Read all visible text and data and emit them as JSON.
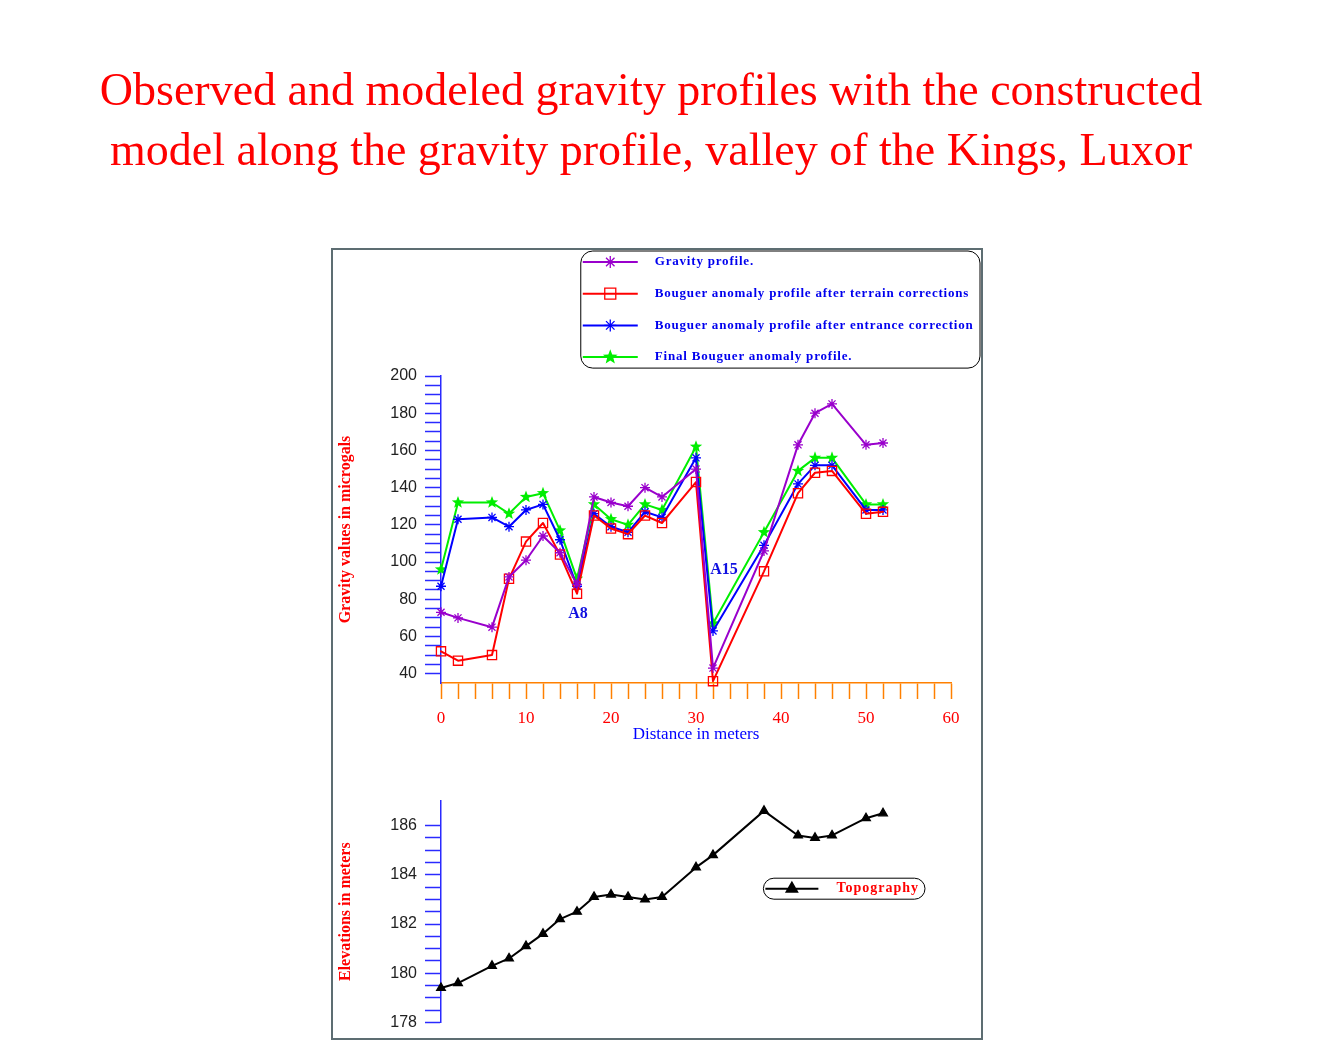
{
  "chart_data": [
    {
      "type": "line",
      "title": "Observed and modeled gravity profiles with the constructed model along the gravity profile, valley of the Kings, Luxor",
      "xlabel": "Distance in meters",
      "ylabel": "Gravity values in microgals",
      "x": [
        0,
        2,
        6,
        8,
        10,
        12,
        14,
        16,
        18,
        20,
        22,
        24,
        26,
        30,
        32,
        38,
        42,
        44,
        46,
        50,
        52
      ],
      "series": [
        {
          "name": "Gravity profile.",
          "color": "#9900cc",
          "marker": "cross",
          "values": [
            73,
            70,
            65,
            92,
            101,
            114,
            105,
            88,
            135,
            132,
            130,
            140,
            135,
            150,
            43,
            106,
            163,
            180,
            185,
            163,
            164
          ]
        },
        {
          "name": "Bouguer anomaly profile after terrain corrections",
          "color": "#ff0000",
          "marker": "square",
          "values": [
            52,
            47,
            50,
            91,
            111,
            121,
            104,
            83,
            125,
            118,
            115,
            125,
            121,
            143,
            36,
            95,
            137,
            148,
            149,
            126,
            127
          ]
        },
        {
          "name": "Bouguer anomaly profile after entrance correction",
          "color": "#0000ff",
          "marker": "cross",
          "values": [
            87,
            123,
            124,
            119,
            128,
            131,
            112,
            87,
            126,
            119,
            116,
            127,
            124,
            156,
            63,
            109,
            142,
            152,
            152,
            128,
            128
          ]
        },
        {
          "name": "Final Bouguer anomaly profile.",
          "color": "#00ee00",
          "marker": "star",
          "values": [
            96,
            132,
            132,
            126,
            135,
            137,
            117,
            91,
            131,
            123,
            120,
            131,
            128,
            162,
            67,
            116,
            149,
            156,
            156,
            131,
            131
          ]
        }
      ],
      "xlim": [
        0,
        60
      ],
      "ylim": [
        35,
        200
      ],
      "xticks": [
        0,
        {
          "value": 2,
          "label": null
        },
        {
          "value": 4,
          "label": null
        },
        {
          "value": 6,
          "label": null
        },
        {
          "value": 8,
          "label": null
        },
        10,
        {
          "value": 12,
          "label": null
        },
        {
          "value": 14,
          "label": null
        },
        {
          "value": 16,
          "label": null
        },
        {
          "value": 18,
          "label": null
        },
        20,
        {
          "value": 22,
          "label": null
        },
        {
          "value": 24,
          "label": null
        },
        {
          "value": 26,
          "label": null
        },
        {
          "value": 28,
          "label": null
        },
        30,
        {
          "value": 32,
          "label": null
        },
        {
          "value": 34,
          "label": null
        },
        {
          "value": 36,
          "label": null
        },
        {
          "value": 38,
          "label": null
        },
        40,
        {
          "value": 42,
          "label": null
        },
        {
          "value": 44,
          "label": null
        },
        {
          "value": 46,
          "label": null
        },
        {
          "value": 48,
          "label": null
        },
        50,
        {
          "value": 52,
          "label": null
        },
        {
          "value": 54,
          "label": null
        },
        {
          "value": 56,
          "label": null
        },
        {
          "value": 58,
          "label": null
        },
        60
      ],
      "yticks": [
        40,
        {
          "value": 45,
          "label": null
        },
        {
          "value": 50,
          "label": null
        },
        {
          "value": 55,
          "label": null
        },
        60,
        {
          "value": 65,
          "label": null
        },
        {
          "value": 70,
          "label": null
        },
        {
          "value": 75,
          "label": null
        },
        80,
        {
          "value": 85,
          "label": null
        },
        {
          "value": 90,
          "label": null
        },
        {
          "value": 95,
          "label": null
        },
        100,
        {
          "value": 105,
          "label": null
        },
        {
          "value": 110,
          "label": null
        },
        {
          "value": 115,
          "label": null
        },
        120,
        {
          "value": 125,
          "label": null
        },
        {
          "value": 130,
          "label": null
        },
        {
          "value": 135,
          "label": null
        },
        140,
        {
          "value": 145,
          "label": null
        },
        {
          "value": 150,
          "label": null
        },
        {
          "value": 155,
          "label": null
        },
        160,
        {
          "value": 165,
          "label": null
        },
        {
          "value": 170,
          "label": null
        },
        {
          "value": 175,
          "label": null
        },
        180,
        {
          "value": 185,
          "label": null
        },
        {
          "value": 190,
          "label": null
        },
        {
          "value": 195,
          "label": null
        },
        200
      ],
      "legend": "top right",
      "line_style": "solid",
      "annotations": [
        "A8",
        "A15"
      ]
    },
    {
      "type": "line",
      "ylabel": "Elevations in meters",
      "x": [
        0,
        2,
        6,
        8,
        10,
        12,
        14,
        16,
        18,
        20,
        22,
        24,
        26,
        30,
        32,
        38,
        42,
        44,
        46,
        50,
        52
      ],
      "series": [
        {
          "name": "Topography",
          "color": "#000000",
          "values": [
            179.4,
            179.6,
            180.3,
            180.6,
            181.1,
            181.6,
            182.2,
            182.5,
            183.1,
            183.2,
            183.1,
            183,
            183.1,
            184.3,
            184.8,
            186.6,
            185.6,
            185.5,
            185.6,
            186.3,
            186.5
          ]
        }
      ],
      "xlim": [
        0,
        60
      ],
      "ylim": [
        178,
        187
      ],
      "yticks": [
        178,
        {
          "value": 178.5,
          "label": null
        },
        {
          "value": 179,
          "label": null
        },
        {
          "value": 179.5,
          "label": null
        },
        180,
        {
          "value": 180.5,
          "label": null
        },
        {
          "value": 181,
          "label": null
        },
        {
          "value": 181.5,
          "label": null
        },
        182,
        {
          "value": 182.5,
          "label": null
        },
        {
          "value": 183,
          "label": null
        },
        {
          "value": 183.5,
          "label": null
        },
        184,
        {
          "value": 184.5,
          "label": null
        },
        {
          "value": 185,
          "label": null
        },
        {
          "value": 185.5,
          "label": null
        },
        186
      ],
      "marker": "triangle",
      "line_style": "solid",
      "legend": "right",
      "tick_labels": "y"
    }
  ]
}
